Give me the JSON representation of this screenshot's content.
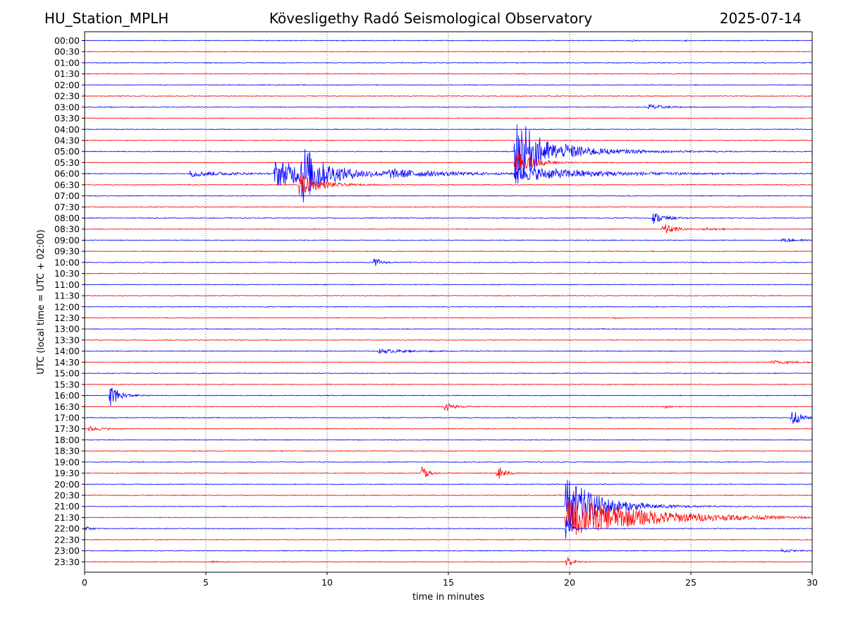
{
  "header": {
    "station": "HU_Station_MPLH",
    "observatory": "Kövesligethy Radó Seismological Observatory",
    "date": "2025-07-14"
  },
  "chart_data": {
    "type": "line",
    "title": "Kövesligethy Radó Seismological Observatory",
    "xlabel": "time in minutes",
    "ylabel": "UTC (local time = UTC + 02:00)",
    "xlim": [
      0,
      30
    ],
    "x_ticks": [
      "0",
      "5",
      "10",
      "15",
      "20",
      "25",
      "30"
    ],
    "x_tick_values": [
      0,
      5,
      10,
      15,
      20,
      25,
      30
    ],
    "grid": "vertical dotted at each x tick",
    "rows": [
      "00:00",
      "00:30",
      "01:00",
      "01:30",
      "02:00",
      "02:30",
      "03:00",
      "03:30",
      "04:00",
      "04:30",
      "05:00",
      "05:30",
      "06:00",
      "06:30",
      "07:00",
      "07:30",
      "08:00",
      "08:30",
      "09:00",
      "09:30",
      "10:00",
      "10:30",
      "11:00",
      "11:30",
      "12:00",
      "12:30",
      "13:00",
      "13:30",
      "14:00",
      "14:30",
      "15:00",
      "15:30",
      "16:00",
      "16:30",
      "17:00",
      "17:30",
      "18:00",
      "18:30",
      "19:00",
      "19:30",
      "20:00",
      "20:30",
      "21:00",
      "21:30",
      "22:00",
      "22:30",
      "23:00",
      "23:30"
    ],
    "colors": {
      "even_rows": "#0000ff",
      "odd_rows": "#ff0000"
    },
    "base_noise": 0.06,
    "events": [
      {
        "row": 0,
        "start": 22.55,
        "amp": 0.25,
        "dur": 0.2
      },
      {
        "row": 0,
        "start": 24.75,
        "amp": 0.2,
        "dur": 0.15
      },
      {
        "row": 6,
        "start": 23.2,
        "amp": 0.55,
        "dur": 1.3
      },
      {
        "row": 10,
        "start": 17.7,
        "amp": 6.8,
        "dur": 2.2
      },
      {
        "row": 10,
        "start": 19.8,
        "amp": 0.5,
        "dur": 6.5
      },
      {
        "row": 11,
        "start": 17.7,
        "amp": 2.2,
        "dur": 1.5
      },
      {
        "row": 12,
        "start": 4.3,
        "amp": 0.5,
        "dur": 3.5
      },
      {
        "row": 12,
        "start": 7.8,
        "amp": 2.2,
        "dur": 5.5
      },
      {
        "row": 12,
        "start": 8.9,
        "amp": 4.5,
        "dur": 1.4
      },
      {
        "row": 12,
        "start": 12.5,
        "amp": 0.5,
        "dur": 5.0
      },
      {
        "row": 12,
        "start": 17.7,
        "amp": 1.2,
        "dur": 7.0
      },
      {
        "row": 13,
        "start": 8.8,
        "amp": 2.0,
        "dur": 1.8
      },
      {
        "row": 16,
        "start": 23.4,
        "amp": 1.1,
        "dur": 1.0
      },
      {
        "row": 17,
        "start": 23.8,
        "amp": 1.2,
        "dur": 1.0
      },
      {
        "row": 17,
        "start": 25.5,
        "amp": 0.25,
        "dur": 1.5
      },
      {
        "row": 18,
        "start": 28.7,
        "amp": 0.35,
        "dur": 1.3
      },
      {
        "row": 20,
        "start": 11.9,
        "amp": 0.9,
        "dur": 0.6
      },
      {
        "row": 25,
        "start": 21.8,
        "amp": 0.2,
        "dur": 0.4
      },
      {
        "row": 28,
        "start": 12.1,
        "amp": 0.35,
        "dur": 2.6
      },
      {
        "row": 29,
        "start": 28.3,
        "amp": 0.35,
        "dur": 1.7
      },
      {
        "row": 32,
        "start": 1.0,
        "amp": 2.2,
        "dur": 0.8
      },
      {
        "row": 33,
        "start": 14.8,
        "amp": 0.9,
        "dur": 0.8
      },
      {
        "row": 33,
        "start": 23.9,
        "amp": 0.5,
        "dur": 0.3
      },
      {
        "row": 34,
        "start": 29.1,
        "amp": 2.0,
        "dur": 0.7
      },
      {
        "row": 35,
        "start": 0.1,
        "amp": 0.45,
        "dur": 1.2
      },
      {
        "row": 39,
        "start": 13.85,
        "amp": 1.8,
        "dur": 0.5
      },
      {
        "row": 39,
        "start": 16.95,
        "amp": 1.8,
        "dur": 0.6
      },
      {
        "row": 42,
        "start": 19.8,
        "amp": 5.0,
        "dur": 3.0
      },
      {
        "row": 43,
        "start": 19.8,
        "amp": 3.4,
        "dur": 7.0
      },
      {
        "row": 44,
        "start": 0.0,
        "amp": 0.4,
        "dur": 0.5
      },
      {
        "row": 44,
        "start": 19.8,
        "amp": 3.0,
        "dur": 0.4
      },
      {
        "row": 46,
        "start": 28.7,
        "amp": 0.3,
        "dur": 1.0
      },
      {
        "row": 47,
        "start": 19.8,
        "amp": 1.6,
        "dur": 0.5
      },
      {
        "row": 47,
        "start": 5.2,
        "amp": 0.2,
        "dur": 0.4
      }
    ]
  }
}
